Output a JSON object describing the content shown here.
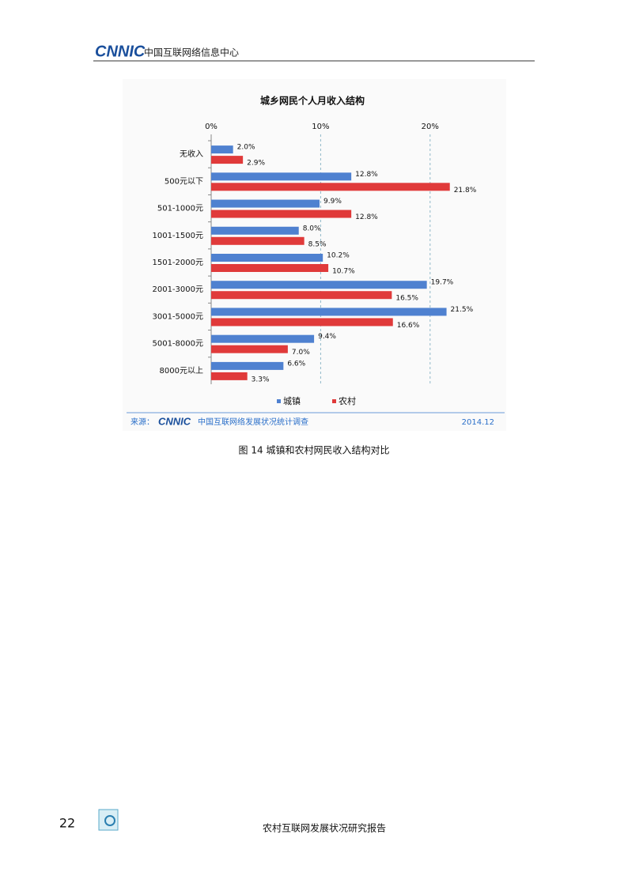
{
  "header": {
    "logo": "CNNIC",
    "title": "中国互联网络信息中心"
  },
  "chart_data": {
    "type": "bar",
    "orientation": "horizontal",
    "title": "城乡网民个人月收入结构",
    "categories": [
      "无收入",
      "500元以下",
      "501-1000元",
      "1001-1500元",
      "1501-2000元",
      "2001-3000元",
      "3001-5000元",
      "5001-8000元",
      "8000元以上"
    ],
    "series": [
      {
        "name": "城镇",
        "color": "#4f81d0",
        "values": [
          2.0,
          12.8,
          9.9,
          8.0,
          10.2,
          19.7,
          21.5,
          9.4,
          6.6
        ],
        "value_labels": [
          "2.0%",
          "12.8%",
          "9.9%",
          "8.0%",
          "10.2%",
          "19.7%",
          "21.5%",
          "9.4%",
          "6.6%"
        ]
      },
      {
        "name": "农村",
        "color": "#e03a3a",
        "values": [
          2.9,
          21.8,
          12.8,
          8.5,
          10.7,
          16.5,
          16.6,
          7.0,
          3.3
        ],
        "value_labels": [
          "2.9%",
          "21.8%",
          "12.8%",
          "8.5%",
          "10.7%",
          "16.5%",
          "16.6%",
          "7.0%",
          "3.3%"
        ]
      }
    ],
    "xlim": [
      0,
      25
    ],
    "xticks": [
      {
        "value": 0,
        "label": "0%"
      },
      {
        "value": 10,
        "label": "10%"
      },
      {
        "value": 20,
        "label": "20%"
      }
    ],
    "grid": true,
    "legend": "bottom",
    "source_prefix": "来源：",
    "source_logo": "CNNIC",
    "source": "中国互联网络发展状况统计调查",
    "date": "2014.12"
  },
  "caption": "图 14 城镇和农村网民收入结构对比",
  "footer": {
    "page": "22",
    "title": "农村互联网发展状况研究报告"
  }
}
